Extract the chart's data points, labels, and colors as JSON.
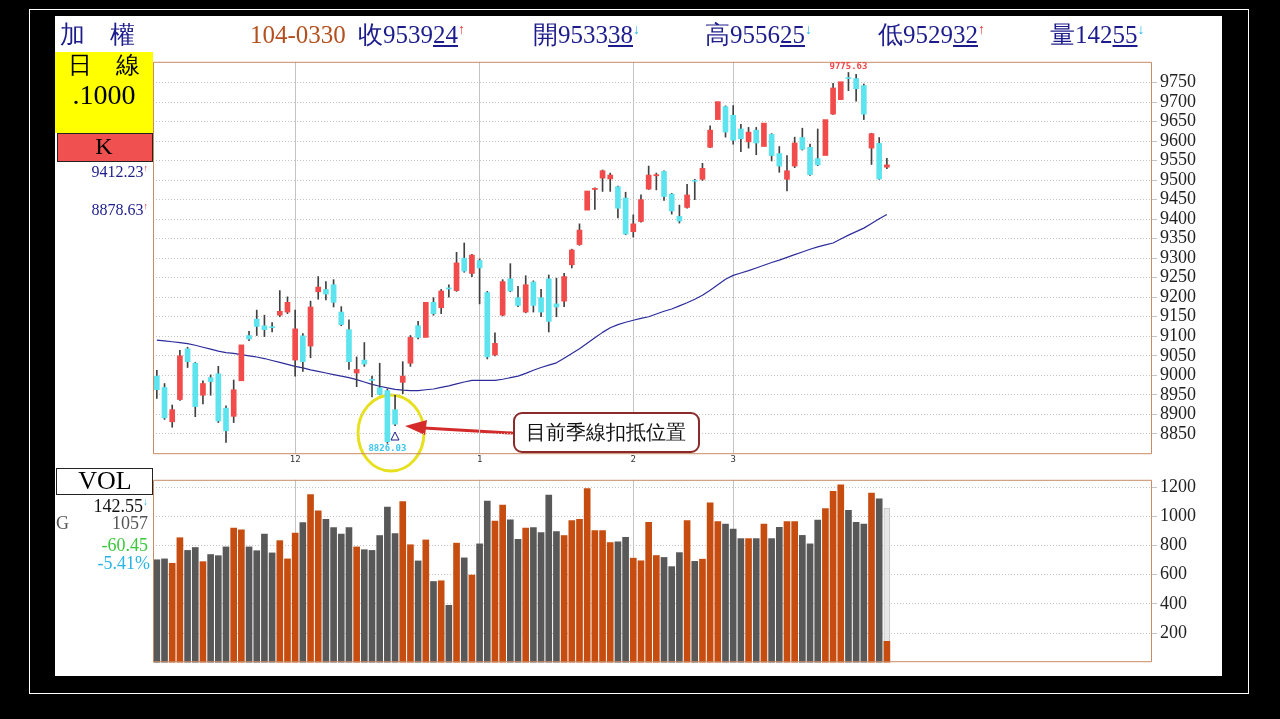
{
  "chart_data": [
    {
      "type": "candlestick",
      "title": "加　權",
      "subtitle": "104-0330",
      "categories": [
        null,
        null,
        null,
        null,
        null,
        null,
        null,
        null,
        null,
        null,
        null,
        null,
        null,
        null,
        null,
        null,
        null,
        null,
        "12",
        null,
        null,
        null,
        null,
        null,
        null,
        null,
        null,
        null,
        null,
        null,
        null,
        null,
        null,
        null,
        null,
        null,
        null,
        null,
        null,
        null,
        null,
        null,
        "1",
        null,
        null,
        null,
        null,
        null,
        null,
        null,
        null,
        null,
        null,
        null,
        null,
        null,
        null,
        null,
        null,
        null,
        null,
        null,
        "2",
        null,
        null,
        null,
        null,
        null,
        null,
        null,
        null,
        null,
        null,
        null,
        null,
        "3",
        null,
        null,
        null,
        null,
        null,
        null,
        null,
        null,
        null,
        null,
        null,
        null,
        null,
        null,
        null,
        null,
        null,
        null,
        null,
        null
      ],
      "ohlc": [
        [
          8998,
          9013,
          8941,
          8963
        ],
        [
          8969,
          8979,
          8887,
          8891
        ],
        [
          8881,
          8924,
          8867,
          8912
        ],
        [
          8938,
          9064,
          8936,
          9050
        ],
        [
          9068,
          9072,
          9020,
          9035
        ],
        [
          9031,
          9033,
          8894,
          8920
        ],
        [
          8949,
          8986,
          8927,
          8979
        ],
        [
          8994,
          9001,
          8949,
          8984
        ],
        [
          9004,
          9023,
          8879,
          8883
        ],
        [
          8916,
          8922,
          8828,
          8858
        ],
        [
          8895,
          8988,
          8879,
          8963
        ],
        [
          8986,
          9078,
          8986,
          9078
        ],
        [
          9102,
          9113,
          9089,
          9093
        ],
        [
          9144,
          9167,
          9102,
          9125
        ],
        [
          9127,
          9154,
          9099,
          9117
        ],
        [
          9124,
          9135,
          9111,
          9122
        ],
        [
          9154,
          9217,
          9150,
          9164
        ],
        [
          9162,
          9201,
          9158,
          9187
        ],
        [
          9039,
          9167,
          8998,
          9119
        ],
        [
          9101,
          9107,
          9010,
          9035
        ],
        [
          9075,
          9190,
          9045,
          9175
        ],
        [
          9214,
          9253,
          9195,
          9226
        ],
        [
          9220,
          9240,
          9193,
          9208
        ],
        [
          9232,
          9245,
          9175,
          9187
        ],
        [
          9162,
          9176,
          9127,
          9130
        ],
        [
          9117,
          9142,
          9015,
          9035
        ],
        [
          9006,
          9047,
          8971,
          9015
        ],
        [
          9039,
          9084,
          9023,
          9029
        ],
        [
          8990,
          8998,
          8945,
          8987
        ],
        [
          8968,
          9031,
          8950,
          8951
        ],
        [
          8961,
          8965,
          8826.03,
          8830
        ],
        [
          8912,
          8949,
          8871,
          8875
        ],
        [
          8982,
          9035,
          8953,
          8998
        ],
        [
          9031,
          9102,
          9023,
          9097
        ],
        [
          9127,
          9138,
          9093,
          9097
        ],
        [
          9097,
          9187,
          9097,
          9187
        ],
        [
          9187,
          9199,
          9154,
          9158
        ],
        [
          9173,
          9220,
          9158,
          9216
        ],
        [
          9224,
          9232,
          9200,
          9221
        ],
        [
          9217,
          9315,
          9215,
          9288
        ],
        [
          9300,
          9339,
          9264,
          9267
        ],
        [
          9261,
          9310,
          9253,
          9308
        ],
        [
          9294,
          9298,
          9183,
          9275
        ],
        [
          9212,
          9215,
          9042,
          9047
        ],
        [
          9052,
          9109,
          9050,
          9082
        ],
        [
          9154,
          9245,
          9152,
          9240
        ],
        [
          9247,
          9286,
          9214,
          9216
        ],
        [
          9199,
          9228,
          9176,
          9179
        ],
        [
          9162,
          9255,
          9160,
          9232
        ],
        [
          9239,
          9242,
          9162,
          9179
        ],
        [
          9199,
          9220,
          9150,
          9162
        ],
        [
          9247,
          9257,
          9111,
          9138
        ],
        [
          9183,
          9249,
          9150,
          9175
        ],
        [
          9190,
          9261,
          9176,
          9253
        ],
        [
          9283,
          9323,
          9275,
          9321
        ],
        [
          9335,
          9388,
          9333,
          9372
        ],
        [
          9423,
          9472,
          9423,
          9472
        ],
        [
          9476,
          9480,
          9425,
          9479
        ],
        [
          9505,
          9526,
          9471,
          9524
        ],
        [
          9503,
          9518,
          9471,
          9513
        ],
        [
          9483,
          9485,
          9403,
          9428
        ],
        [
          9454,
          9469,
          9360,
          9362
        ],
        [
          9368,
          9411,
          9354,
          9388
        ],
        [
          9394,
          9462,
          9392,
          9450
        ],
        [
          9477,
          9536,
          9476,
          9513
        ],
        [
          9511,
          9518,
          9475,
          9514
        ],
        [
          9522,
          9524,
          9448,
          9458
        ],
        [
          9464,
          9466,
          9413,
          9421
        ],
        [
          9407,
          9436,
          9390,
          9395
        ],
        [
          9430,
          9489,
          9428,
          9462
        ],
        [
          9499,
          9502,
          9450,
          9497
        ],
        [
          9502,
          9543,
          9499,
          9530
        ],
        [
          9584,
          9639,
          9583,
          9628
        ],
        [
          9655,
          9701,
          9655,
          9701
        ],
        [
          9688,
          9690,
          9610,
          9623
        ],
        [
          9666,
          9691,
          9592,
          9602
        ],
        [
          9631,
          9643,
          9573,
          9606
        ],
        [
          9598,
          9635,
          9582,
          9623
        ],
        [
          9628,
          9635,
          9565,
          9595
        ],
        [
          9586,
          9646,
          9586,
          9646
        ],
        [
          9617,
          9619,
          9549,
          9563
        ],
        [
          9568,
          9586,
          9520,
          9536
        ],
        [
          9502,
          9563,
          9472,
          9524
        ],
        [
          9536,
          9610,
          9532,
          9595
        ],
        [
          9609,
          9633,
          9577,
          9579
        ],
        [
          9584,
          9592,
          9512,
          9514
        ],
        [
          9555,
          9631,
          9537,
          9539
        ],
        [
          9563,
          9655,
          9563,
          9655
        ],
        [
          9669,
          9748,
          9668,
          9736
        ],
        [
          9706,
          9752,
          9706,
          9752
        ],
        [
          9762,
          9775.63,
          9729,
          9760
        ],
        [
          9760,
          9771,
          9702,
          9734
        ],
        [
          9742,
          9746,
          9655,
          9669
        ],
        [
          9582,
          9620,
          9540,
          9619
        ],
        [
          9594,
          9609,
          9502,
          9503
        ],
        [
          9533,
          9556,
          9529,
          9539
        ]
      ],
      "colors": [
        "#5de4ef",
        "#5de4ef",
        "#f24b4b",
        "#f24b4b",
        "#5de4ef",
        "#5de4ef",
        "#f24b4b",
        "#5de4ef",
        "#5de4ef",
        "#5de4ef",
        "#f24b4b",
        "#f24b4b",
        "#5de4ef",
        "#5de4ef",
        "#5de4ef",
        "#5de4ef",
        "#f24b4b",
        "#f24b4b",
        "#f24b4b",
        "#5de4ef",
        "#f24b4b",
        "#f24b4b",
        "#5de4ef",
        "#5de4ef",
        "#5de4ef",
        "#5de4ef",
        "#f24b4b",
        "#5de4ef",
        "#5de4ef",
        "#5de4ef",
        "#5de4ef",
        "#5de4ef",
        "#f24b4b",
        "#f24b4b",
        "#5de4ef",
        "#f24b4b",
        "#5de4ef",
        "#f24b4b",
        "#5de4ef",
        "#f24b4b",
        "#5de4ef",
        "#f24b4b",
        "#5de4ef",
        "#5de4ef",
        "#f24b4b",
        "#f24b4b",
        "#5de4ef",
        "#5de4ef",
        "#f24b4b",
        "#5de4ef",
        "#5de4ef",
        "#5de4ef",
        "#5de4ef",
        "#f24b4b",
        "#f24b4b",
        "#f24b4b",
        "#f24b4b",
        "#f24b4b",
        "#f24b4b",
        "#f24b4b",
        "#5de4ef",
        "#5de4ef",
        "#f24b4b",
        "#f24b4b",
        "#f24b4b",
        "#f24b4b",
        "#5de4ef",
        "#5de4ef",
        "#5de4ef",
        "#f24b4b",
        "#5de4ef",
        "#f24b4b",
        "#f24b4b",
        "#f24b4b",
        "#5de4ef",
        "#5de4ef",
        "#5de4ef",
        "#f24b4b",
        "#5de4ef",
        "#f24b4b",
        "#5de4ef",
        "#5de4ef",
        "#f24b4b",
        "#f24b4b",
        "#5de4ef",
        "#5de4ef",
        "#5de4ef",
        "#f24b4b",
        "#f24b4b",
        "#f24b4b",
        "#5de4ef",
        "#5de4ef",
        "#5de4ef",
        "#f24b4b",
        "#5de4ef",
        "#f24b4b"
      ],
      "series": [
        {
          "type": "line",
          "color": "#2c2c9c",
          "values": [
            9090,
            9088,
            9086,
            9084,
            9081,
            9077,
            9072,
            9067,
            9062,
            9058,
            9056,
            9053,
            9050,
            9047,
            9043,
            9038,
            9033,
            9028,
            9023,
            9019,
            9014,
            9010,
            9006,
            9002,
            8998,
            8994,
            8989,
            8983,
            8977,
            8972,
            8968,
            8964,
            8962,
            8961,
            8961,
            8963,
            8965,
            8969,
            8973,
            8978,
            8983,
            8987,
            8987,
            8987,
            8987,
            8990,
            8994,
            8998,
            9005,
            9013,
            9020,
            9026,
            9032,
            9044,
            9056,
            9068,
            9082,
            9096,
            9110,
            9122,
            9130,
            9136,
            9141,
            9146,
            9150,
            9157,
            9164,
            9170,
            9178,
            9186,
            9195,
            9205,
            9218,
            9232,
            9246,
            9256,
            9262,
            9268,
            9275,
            9282,
            9289,
            9295,
            9302,
            9309,
            9316,
            9323,
            9329,
            9334,
            9339,
            9349,
            9359,
            9368,
            9377,
            9389,
            9401,
            9412
          ]
        }
      ],
      "ylim": [
        8798,
        9803
      ],
      "yticks": [
        8850,
        8900,
        8950,
        9000,
        9050,
        9100,
        9150,
        9200,
        9250,
        9300,
        9350,
        9400,
        9450,
        9500,
        9550,
        9600,
        9650,
        9700,
        9750
      ],
      "grid": true,
      "annotations": [
        "收953924$^{↑}$",
        "開953338$^{↓}$",
        "高955625$^{↓}$",
        "低952932$^{↑}$",
        "量14255$^{↓}$",
        "日　線",
        ".1000",
        "K",
        "9412.23$^{↑}$",
        "8878.63$^{↑}$",
        {
          "text": "8826.03",
          "y": 8826.03
        },
        {
          "text": "9775.63",
          "y": 9775.63
        },
        "目前季線扣抵位置"
      ]
    },
    {
      "type": "bar",
      "categories": [
        null,
        null,
        null,
        null,
        null,
        null,
        null,
        null,
        null,
        null,
        null,
        null,
        null,
        null,
        null,
        null,
        null,
        null,
        null,
        null,
        null,
        null,
        null,
        null,
        null,
        null,
        null,
        null,
        null,
        null,
        null,
        null,
        null,
        null,
        null,
        null,
        null,
        null,
        null,
        null,
        null,
        null,
        null,
        null,
        null,
        null,
        null,
        null,
        null,
        null,
        null,
        null,
        null,
        null,
        null,
        null,
        null,
        null,
        null,
        null,
        null,
        null,
        null,
        null,
        null,
        null,
        null,
        null,
        null,
        null,
        null,
        null,
        null,
        null,
        null,
        null,
        null,
        null,
        null,
        null,
        null,
        null,
        null,
        null,
        null,
        null,
        null,
        null,
        null,
        null,
        null,
        null,
        null,
        null,
        null,
        null,
        null,
        null,
        null,
        null,
        null,
        null,
        null,
        null,
        null,
        null,
        null,
        null,
        null,
        null,
        null,
        null,
        null,
        null,
        null,
        null,
        null,
        null,
        null,
        null,
        null,
        null,
        null,
        null,
        null,
        null,
        null,
        null,
        null,
        null
      ],
      "series": [
        {
          "values": [
            702,
            708,
            678,
            853,
            766,
            786,
            689,
            738,
            730,
            790,
            919,
            908,
            790,
            764,
            878,
            749,
            833,
            708,
            885,
            956,
            1149,
            1037,
            979,
            923,
            878,
            923,
            790,
            771,
            766,
            868,
            1063,
            882,
            1100,
            805,
            694,
            838,
            553,
            558,
            390,
            816,
            715,
            597,
            811,
            1104,
            967,
            1076,
            975,
            842,
            919,
            923,
            889,
            1145,
            895,
            868,
            971,
            979,
            1190,
            902,
            902,
            820,
            825,
            856,
            713,
            695,
            959,
            731,
            718,
            655,
            751,
            970,
            691,
            706,
            1093,
            963,
            947,
            912,
            847,
            847,
            847,
            947,
            847,
            925,
            963,
            963,
            869,
            811,
            974,
            1052,
            1171,
            1215,
            1041,
            959,
            947,
            1159,
            1119,
            143,
            null,
            null,
            null,
            null,
            null,
            null,
            null,
            null,
            null,
            null,
            null,
            null,
            null,
            null,
            null,
            null,
            null,
            null,
            null,
            null,
            null,
            null,
            null,
            null,
            null,
            null,
            null,
            null,
            null,
            null,
            null,
            null,
            null,
            null
          ],
          "colors": [
            "#585858",
            "#585858",
            "#c64c10",
            "#c64c10",
            "#585858",
            "#585858",
            "#c64c10",
            "#585858",
            "#585858",
            "#585858",
            "#c64c10",
            "#c64c10",
            "#585858",
            "#585858",
            "#585858",
            "#585858",
            "#c64c10",
            "#c64c10",
            "#c64c10",
            "#585858",
            "#c64c10",
            "#c64c10",
            "#585858",
            "#585858",
            "#585858",
            "#585858",
            "#c64c10",
            "#585858",
            "#585858",
            "#585858",
            "#585858",
            "#585858",
            "#c64c10",
            "#c64c10",
            "#585858",
            "#c64c10",
            "#585858",
            "#c64c10",
            "#585858",
            "#c64c10",
            "#585858",
            "#c64c10",
            "#585858",
            "#585858",
            "#c64c10",
            "#c64c10",
            "#585858",
            "#585858",
            "#c64c10",
            "#585858",
            "#585858",
            "#585858",
            "#585858",
            "#c64c10",
            "#c64c10",
            "#c64c10",
            "#c64c10",
            "#c64c10",
            "#c64c10",
            "#c64c10",
            "#585858",
            "#585858",
            "#c64c10",
            "#c64c10",
            "#c64c10",
            "#c64c10",
            "#585858",
            "#585858",
            "#585858",
            "#c64c10",
            "#585858",
            "#c64c10",
            "#c64c10",
            "#c64c10",
            "#585858",
            "#585858",
            "#585858",
            "#c64c10",
            "#585858",
            "#c64c10",
            "#585858",
            "#585858",
            "#c64c10",
            "#c64c10",
            "#585858",
            "#585858",
            "#585858",
            "#c64c10",
            "#c64c10",
            "#c64c10",
            "#585858",
            "#585858",
            "#585858",
            "#c64c10",
            "#585858",
            "#c64c10",
            "#585858",
            "#585858",
            "#585858",
            "#585858",
            "#585858",
            "#585858",
            "#585858",
            "#585858",
            "#585858",
            "#585858",
            "#585858",
            "#585858",
            "#585858",
            "#585858",
            "#585858",
            "#585858",
            "#585858",
            "#585858",
            "#585858",
            "#585858",
            "#585858",
            "#585858",
            "#585858",
            "#585858",
            "#585858",
            "#585858",
            "#585858",
            "#585858",
            "#585858",
            "#585858",
            "#585858",
            "#585858",
            "#585858",
            "#585858"
          ]
        },
        {
          "color": "#e6e6e6",
          "values": [
            null,
            null,
            null,
            null,
            null,
            null,
            null,
            null,
            null,
            null,
            null,
            null,
            null,
            null,
            null,
            null,
            null,
            null,
            null,
            null,
            null,
            null,
            null,
            null,
            null,
            null,
            null,
            null,
            null,
            null,
            null,
            null,
            null,
            null,
            null,
            null,
            null,
            null,
            null,
            null,
            null,
            null,
            null,
            null,
            null,
            null,
            null,
            null,
            null,
            null,
            null,
            null,
            null,
            null,
            null,
            null,
            null,
            null,
            null,
            null,
            null,
            null,
            null,
            null,
            null,
            null,
            null,
            null,
            null,
            null,
            null,
            null,
            null,
            null,
            null,
            null,
            null,
            null,
            null,
            null,
            null,
            null,
            null,
            null,
            null,
            null,
            null,
            null,
            null,
            null,
            null,
            null,
            null,
            null,
            null,
            1057,
            null,
            null,
            null,
            null,
            null,
            null,
            null,
            null,
            null,
            null,
            null,
            null,
            null,
            null,
            null,
            null,
            null,
            null,
            null,
            null,
            null,
            null,
            null,
            null,
            null,
            null,
            null,
            null,
            null,
            null,
            null,
            null,
            null,
            null
          ]
        }
      ],
      "ylim": [
        0,
        1250
      ],
      "yticks": [
        200,
        400,
        600,
        800,
        1000,
        1200
      ],
      "grid": true,
      "annotations": [
        "VOL",
        "142.55$^{↓}$",
        "G",
        "1057",
        "-60.45",
        "-5.41%"
      ]
    }
  ]
}
